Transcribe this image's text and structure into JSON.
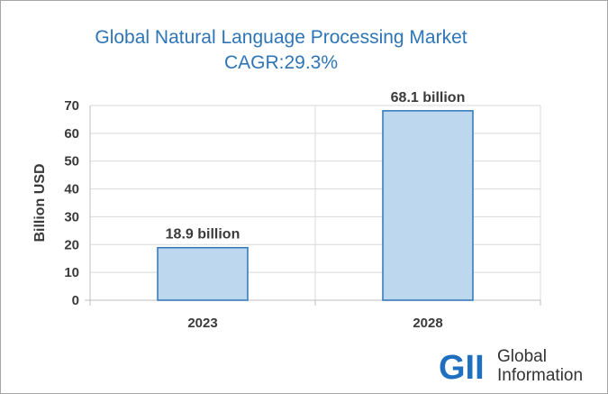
{
  "chart_data": {
    "type": "bar",
    "title": "Global Natural Language Processing Market",
    "subtitle": "CAGR:29.3%",
    "xlabel": "",
    "ylabel": "Billion USD",
    "categories": [
      "2023",
      "2028"
    ],
    "values": [
      18.9,
      68.1
    ],
    "data_labels": [
      "18.9 billion",
      "68.1 billion"
    ],
    "ylim": [
      0,
      70
    ],
    "yticks": [
      0,
      10,
      20,
      30,
      40,
      50,
      60,
      70
    ],
    "grid": true,
    "bar_fill": "#bdd7ee",
    "bar_stroke": "#2e75b6",
    "grid_color": "#d9d9d9",
    "title_color": "#2e75b6"
  },
  "logo": {
    "mark": "GII",
    "line1": "Global",
    "line2": "Information",
    "color": "#1f6fc1"
  }
}
